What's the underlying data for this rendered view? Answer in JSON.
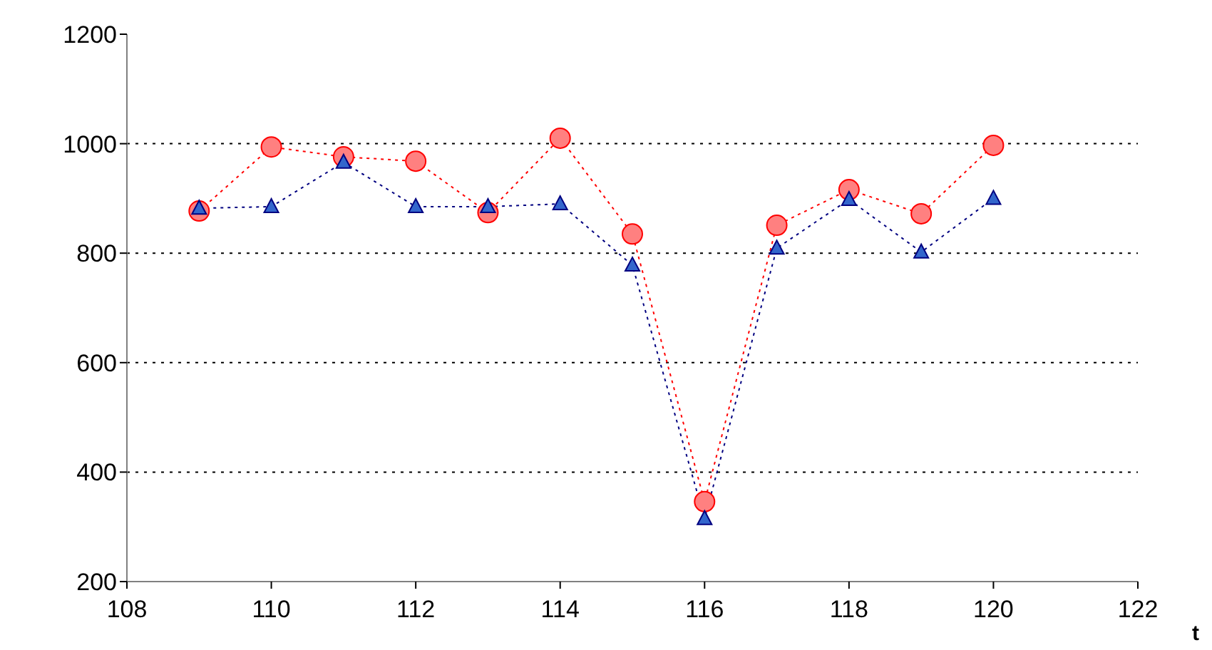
{
  "chart_data": {
    "type": "line",
    "xlabel": "t",
    "x": [
      109,
      110,
      111,
      112,
      113,
      114,
      115,
      116,
      117,
      118,
      119,
      120
    ],
    "series": [
      {
        "color": "#ff0000",
        "marker": "circle",
        "values": [
          877,
          994,
          976,
          968,
          874,
          1010,
          835,
          346,
          851,
          916,
          872,
          997
        ]
      },
      {
        "color": "#000080",
        "marker": "triangle",
        "values": [
          882,
          885,
          966,
          885,
          885,
          890,
          778,
          315,
          809,
          898,
          802,
          900
        ]
      }
    ],
    "xlim": [
      108,
      122
    ],
    "xticks": [
      108,
      110,
      112,
      114,
      116,
      118,
      120,
      122
    ],
    "ylim": [
      200,
      1200
    ],
    "yticks": [
      200,
      400,
      600,
      800,
      1000,
      1200
    ],
    "grid": "y",
    "legend": false,
    "line_style": "dotted"
  }
}
